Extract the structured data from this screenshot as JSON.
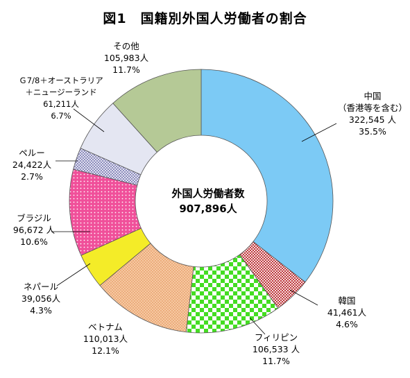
{
  "title": "図1　国籍別外国人労働者の割合",
  "center": {
    "label": "外国人労働者数",
    "total": "907,896人"
  },
  "chart_data": {
    "type": "pie",
    "title": "図1　国籍別外国人労働者の割合",
    "donut": true,
    "start_angle_deg": 0,
    "direction": "clockwise",
    "total": 907896,
    "slices": [
      {
        "key": "china",
        "name": "中国",
        "name2": "（香港等を含む）",
        "count_text": "322,545 人",
        "value": 322545,
        "pct_text": "35.5%",
        "color": "#7ccaf5"
      },
      {
        "key": "korea",
        "name": "韓国",
        "name2": "",
        "count_text": "41,461人",
        "value": 41461,
        "pct_text": "4.6%",
        "color": "#c8494d",
        "pattern": "dots"
      },
      {
        "key": "philippines",
        "name": "フィリピン",
        "name2": "",
        "count_text": "106,533 人",
        "value": 106533,
        "pct_text": "11.7%",
        "color": "#66dd33",
        "pattern": "checker"
      },
      {
        "key": "vietnam",
        "name": "ベトナム",
        "name2": "",
        "count_text": "110,013人",
        "value": 110013,
        "pct_text": "12.1%",
        "color": "#f6b98a",
        "pattern": "crosshatch"
      },
      {
        "key": "nepal",
        "name": "ネパール",
        "name2": "",
        "count_text": "39,056人",
        "value": 39056,
        "pct_text": "4.3%",
        "color": "#f4ec28"
      },
      {
        "key": "brazil",
        "name": "ブラジル",
        "name2": "",
        "count_text": "96,672 人",
        "value": 96672,
        "pct_text": "10.6%",
        "color": "#f0509a",
        "pattern": "dots"
      },
      {
        "key": "peru",
        "name": "ペルー",
        "name2": "",
        "count_text": "24,422人",
        "value": 24422,
        "pct_text": "2.7%",
        "color": "#e6e6f4",
        "pattern": "diagonal"
      },
      {
        "key": "g7",
        "name": "Ｇ7/8＋オーストラリア",
        "name2": "＋ニュージーランド",
        "count_text": "61,211人",
        "value": 61211,
        "pct_text": "6.7%",
        "color": "#e4e6f2"
      },
      {
        "key": "other",
        "name": "その他",
        "name2": "",
        "count_text": "105,983人",
        "value": 105983,
        "pct_text": "11.7%",
        "color": "#b5c996"
      }
    ]
  }
}
